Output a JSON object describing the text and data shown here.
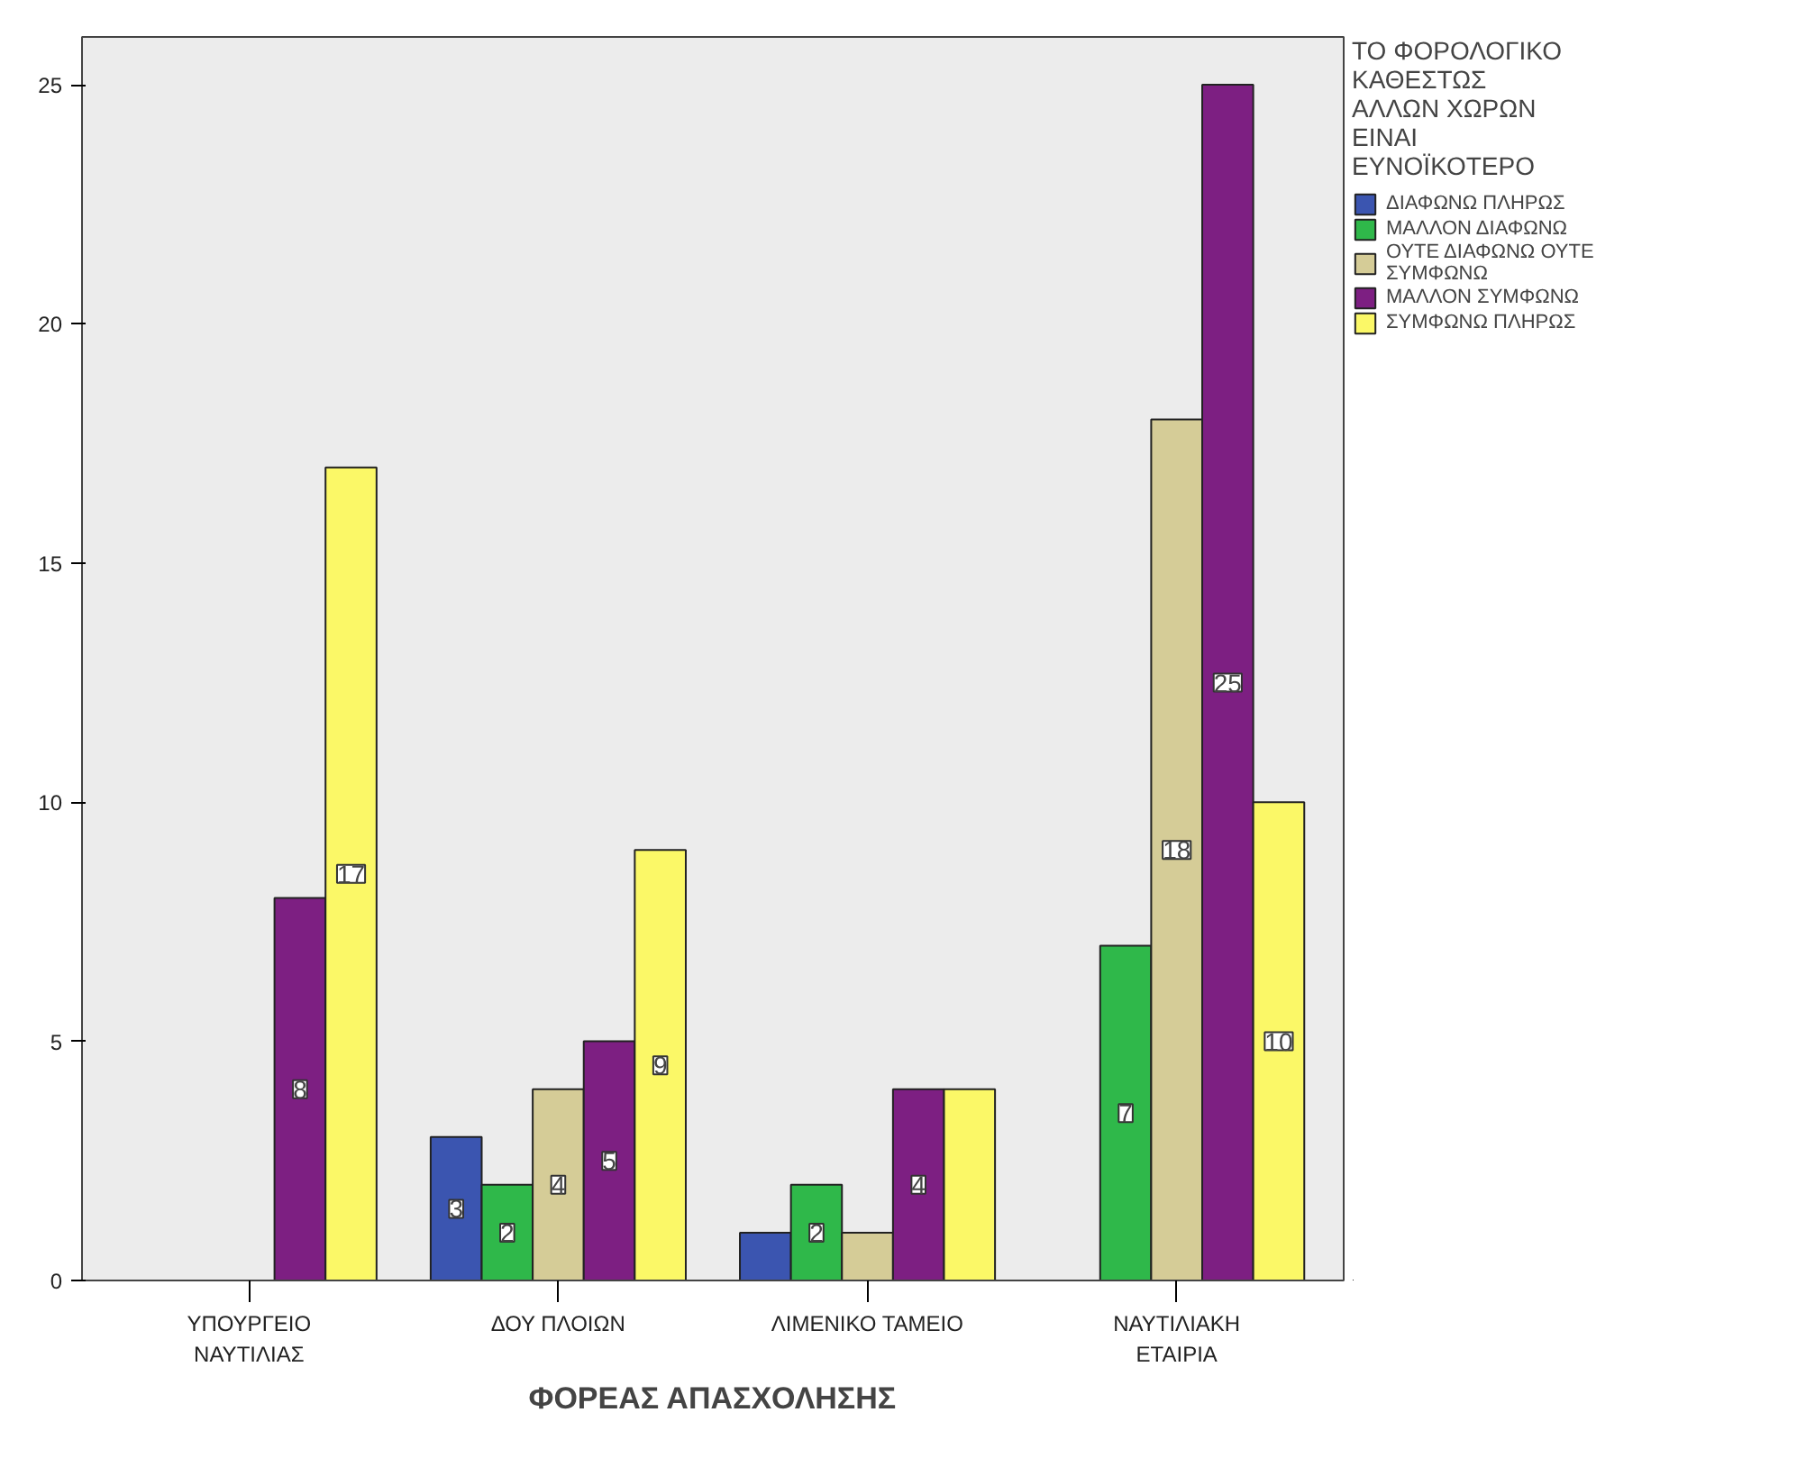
{
  "chart_data": {
    "type": "bar",
    "xlabel": "ΦΟΡΕΑΣ ΑΠΑΣΧΟΛΗΣΗΣ",
    "legend_title": "ΤΟ ΦΟΡΟΛΟΓΙΚΟ\nΚΑΘΕΣΤΩΣ\nΑΛΛΩΝ ΧΩΡΩΝ\nΕΙΝΑΙ\nΕΥΝΟΪΚΟΤΕΡΟ",
    "categories": [
      "ΥΠΟΥΡΓΕΙΟ\nΝΑΥΤΙΛΙΑΣ",
      "ΔΟΥ ΠΛΟΙΩΝ",
      "ΛΙΜΕΝΙΚΟ ΤΑΜΕΙΟ",
      "ΝΑΥΤΙΛΙΑΚΗ\nΕΤΑΙΡΙΑ"
    ],
    "series": [
      {
        "name": "ΔΙΑΦΩΝΩ ΠΛΗΡΩΣ",
        "color": "#3b55b0",
        "values": [
          null,
          3,
          1,
          null
        ],
        "value_labels": [
          null,
          "3",
          null,
          null
        ]
      },
      {
        "name": "ΜΑΛΛΟΝ ΔΙΑΦΩΝΩ",
        "color": "#2fb84a",
        "values": [
          null,
          2,
          2,
          7
        ],
        "value_labels": [
          null,
          "2",
          "2",
          "7"
        ]
      },
      {
        "name": "ΟΥΤΕ ΔΙΑΦΩΝΩ ΟΥΤΕ\nΣΥΜΦΩΝΩ",
        "color": "#d5cc97",
        "values": [
          null,
          4,
          1,
          18
        ],
        "value_labels": [
          null,
          "4",
          null,
          "18"
        ]
      },
      {
        "name": "ΜΑΛΛΟΝ ΣΥΜΦΩΝΩ",
        "color": "#7d1f82",
        "values": [
          8,
          5,
          4,
          25
        ],
        "value_labels": [
          "8",
          "5",
          "4",
          "25"
        ]
      },
      {
        "name": "ΣΥΜΦΩΝΩ ΠΛΗΡΩΣ",
        "color": "#fbf867",
        "values": [
          17,
          9,
          4,
          10
        ],
        "value_labels": [
          "17",
          "9",
          null,
          "10"
        ]
      }
    ],
    "ylim": [
      0,
      26
    ],
    "yticks": [
      0,
      5,
      10,
      15,
      20,
      25
    ],
    "grid": false,
    "legend": "right"
  }
}
